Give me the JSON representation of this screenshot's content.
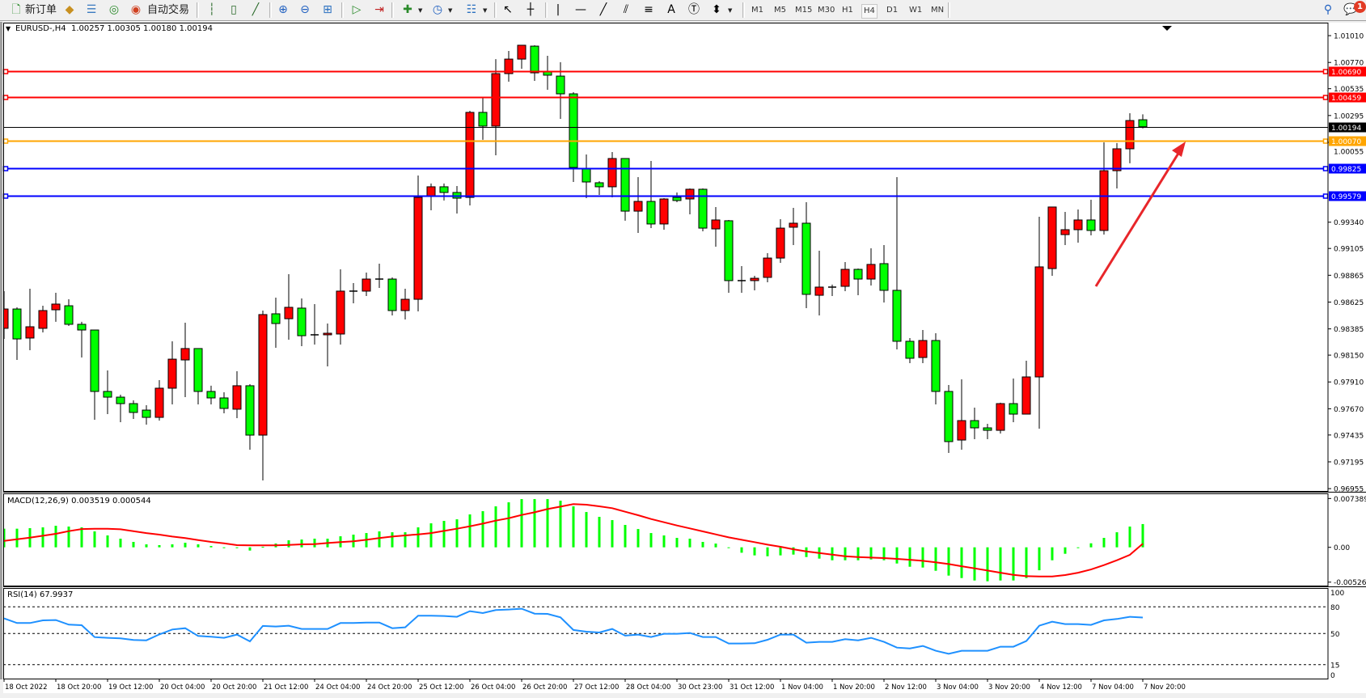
{
  "toolbar": {
    "new_order_label": "新订单",
    "auto_trading_label": "自动交易",
    "tool_icons": [
      "new-order-icon",
      "history-center-icon",
      "market-watch-icon",
      "signals-icon",
      "auto-trading-icon",
      "bar-chart-icon",
      "candlestick-icon",
      "line-chart-icon",
      "zoom-in-icon",
      "zoom-out-icon",
      "tile-windows-icon",
      "autoscroll-icon",
      "chart-shift-icon",
      "indicators-icon",
      "periods-icon",
      "templates-icon",
      "cursor-icon",
      "crosshair-icon",
      "vertical-line-icon",
      "horizontal-line-icon",
      "trendline-icon",
      "fibonacci-expansion-icon",
      "fibonacci-retracement-icon",
      "text-icon",
      "text-label-icon",
      "arrows-icon",
      "search-icon",
      "notification-icon"
    ],
    "timeframes": [
      "M1",
      "M5",
      "M15",
      "M30",
      "H1",
      "H4",
      "D1",
      "W1",
      "MN"
    ],
    "active_timeframe": "H4",
    "notification_count": "1"
  },
  "chart": {
    "symbol_period": "EURUSD-,H4",
    "ohlc_readout": "1.00257 1.00305 1.00180 1.00194",
    "macd_label": "MACD(12,26,9) 0.003519 0.000544",
    "rsi_label": "RSI(14) 67.9937"
  },
  "chart_data": [
    {
      "type": "candlestick",
      "symbol": "EURUSD-",
      "timeframe": "H4",
      "colors": {
        "bull": "#ff0000",
        "bear": "#00ff00",
        "outline": "#000000"
      },
      "ylim": [
        0.96971,
        1.01156
      ],
      "y_ticks": [
        "1.01010",
        "1.00770",
        "1.00535",
        "1.00295",
        "1.00055",
        "0.99340",
        "0.99105",
        "0.98865",
        "0.98625",
        "0.98385",
        "0.98150",
        "0.97910",
        "0.97670",
        "0.97435",
        "0.97195",
        "0.96955"
      ],
      "x_ticks": [
        "18 Oct 2022",
        "18 Oct 20:00",
        "19 Oct 12:00",
        "20 Oct 04:00",
        "20 Oct 20:00",
        "21 Oct 12:00",
        "24 Oct 04:00",
        "24 Oct 20:00",
        "25 Oct 12:00",
        "26 Oct 04:00",
        "26 Oct 20:00",
        "27 Oct 12:00",
        "28 Oct 04:00",
        "30 Oct 23:00",
        "31 Oct 12:00",
        "1 Nov 04:00",
        "1 Nov 20:00",
        "2 Nov 12:00",
        "3 Nov 04:00",
        "3 Nov 20:00",
        "4 Nov 12:00",
        "7 Nov 04:00",
        "7 Nov 20:00"
      ],
      "ohlc_columns": [
        "open",
        "high",
        "low",
        "close"
      ],
      "ohlc": [
        [
          0.9839,
          0.98723,
          0.98295,
          0.98563
        ],
        [
          0.98563,
          0.98578,
          0.98107,
          0.98295
        ],
        [
          0.98303,
          0.98744,
          0.98194,
          0.98404
        ],
        [
          0.9839,
          0.98592,
          0.98353,
          0.98549
        ],
        [
          0.98556,
          0.98708,
          0.98448,
          0.98607
        ],
        [
          0.98592,
          0.9865,
          0.98411,
          0.98426
        ],
        [
          0.98426,
          0.98448,
          0.98129,
          0.98375
        ],
        [
          0.98375,
          0.98375,
          0.97571,
          0.97825
        ],
        [
          0.97825,
          0.98013,
          0.97622,
          0.97774
        ],
        [
          0.97774,
          0.97796,
          0.9755,
          0.97716
        ],
        [
          0.97716,
          0.97745,
          0.97579,
          0.97637
        ],
        [
          0.97658,
          0.97702,
          0.97528,
          0.97593
        ],
        [
          0.97593,
          0.97926,
          0.97564,
          0.97854
        ],
        [
          0.97854,
          0.98274,
          0.97709,
          0.98114
        ],
        [
          0.98107,
          0.9844,
          0.97774,
          0.98209
        ],
        [
          0.98209,
          0.98209,
          0.97709,
          0.97825
        ],
        [
          0.97825,
          0.97876,
          0.97709,
          0.97767
        ],
        [
          0.97767,
          0.97818,
          0.97629,
          0.97673
        ],
        [
          0.97666,
          0.98006,
          0.97586,
          0.97876
        ],
        [
          0.97876,
          0.9789,
          0.97304,
          0.97434
        ],
        [
          0.97434,
          0.98549,
          0.97028,
          0.98513
        ],
        [
          0.9852,
          0.98665,
          0.98216,
          0.98433
        ],
        [
          0.98476,
          0.98875,
          0.98288,
          0.98578
        ],
        [
          0.98571,
          0.98657,
          0.9823,
          0.98324
        ],
        [
          0.98332,
          0.98607,
          0.98245,
          0.98332
        ],
        [
          0.98332,
          0.98433,
          0.98049,
          0.98346
        ],
        [
          0.98339,
          0.98918,
          0.98245,
          0.98723
        ],
        [
          0.98723,
          0.98795,
          0.98614,
          0.98723
        ],
        [
          0.98723,
          0.98889,
          0.98679,
          0.98831
        ],
        [
          0.98831,
          0.98969,
          0.98752,
          0.98831
        ],
        [
          0.98831,
          0.98846,
          0.98505,
          0.98549
        ],
        [
          0.98549,
          0.98744,
          0.98469,
          0.9865
        ],
        [
          0.9865,
          0.99758,
          0.98542,
          0.99562
        ],
        [
          0.9957,
          0.99686,
          0.99447,
          0.99657
        ],
        [
          0.99657,
          0.99686,
          0.99534,
          0.99606
        ],
        [
          0.99606,
          0.99664,
          0.99418,
          0.99555
        ],
        [
          0.99562,
          1.00337,
          0.9949,
          1.00323
        ],
        [
          1.00323,
          1.00453,
          1.00077,
          1.002
        ],
        [
          1.002,
          1.008,
          0.99939,
          1.0067
        ],
        [
          1.0067,
          1.00873,
          1.00598,
          1.008
        ],
        [
          1.008,
          1.00924,
          1.00714,
          1.00924
        ],
        [
          1.00916,
          1.00924,
          1.00605,
          1.00677
        ],
        [
          1.00685,
          1.00829,
          1.00525,
          1.00656
        ],
        [
          1.00648,
          1.00772,
          1.00265,
          1.00489
        ],
        [
          1.00489,
          1.00504,
          0.997,
          0.9983
        ],
        [
          0.99823,
          0.99946,
          0.99555,
          0.997
        ],
        [
          0.99693,
          0.99707,
          0.99584,
          0.99657
        ],
        [
          0.99657,
          0.99968,
          0.99562,
          0.9991
        ],
        [
          0.9991,
          0.9991,
          0.99353,
          0.99439
        ],
        [
          0.99439,
          0.99743,
          0.99244,
          0.99526
        ],
        [
          0.99526,
          0.99888,
          0.99287,
          0.99324
        ],
        [
          0.99324,
          0.99555,
          0.99273,
          0.99548
        ],
        [
          0.99562,
          0.99606,
          0.99519,
          0.99534
        ],
        [
          0.99548,
          0.99642,
          0.9941,
          0.99635
        ],
        [
          0.99635,
          0.99642,
          0.99258,
          0.99287
        ],
        [
          0.9928,
          0.99476,
          0.99121,
          0.9936
        ],
        [
          0.99353,
          0.9936,
          0.98708,
          0.98817
        ],
        [
          0.98817,
          0.98947,
          0.98708,
          0.98817
        ],
        [
          0.98817,
          0.9886,
          0.9873,
          0.98838
        ],
        [
          0.98846,
          0.99063,
          0.98802,
          0.99019
        ],
        [
          0.99019,
          0.99367,
          0.98976,
          0.99287
        ],
        [
          0.99295,
          0.99468,
          0.99135,
          0.99331
        ],
        [
          0.99331,
          0.99519,
          0.98571,
          0.98694
        ],
        [
          0.98686,
          0.99085,
          0.98505,
          0.98759
        ],
        [
          0.98759,
          0.98781,
          0.98679,
          0.98759
        ],
        [
          0.98766,
          0.98983,
          0.98723,
          0.98918
        ],
        [
          0.98918,
          0.98925,
          0.98686,
          0.98831
        ],
        [
          0.98831,
          0.99106,
          0.98773,
          0.98962
        ],
        [
          0.98969,
          0.99135,
          0.98621,
          0.9873
        ],
        [
          0.9873,
          0.99743,
          0.98201,
          0.98274
        ],
        [
          0.98274,
          0.98303,
          0.98078,
          0.98122
        ],
        [
          0.98129,
          0.98375,
          0.98078,
          0.98281
        ],
        [
          0.98281,
          0.98346,
          0.97709,
          0.97825
        ],
        [
          0.97825,
          0.97883,
          0.97275,
          0.97376
        ],
        [
          0.9739,
          0.97933,
          0.97304,
          0.97564
        ],
        [
          0.97564,
          0.9768,
          0.97398,
          0.97499
        ],
        [
          0.97499,
          0.97535,
          0.97398,
          0.97477
        ],
        [
          0.97477,
          0.97724,
          0.97448,
          0.97716
        ],
        [
          0.97716,
          0.97941,
          0.9755,
          0.97622
        ],
        [
          0.97622,
          0.981,
          0.97622,
          0.97955
        ],
        [
          0.97955,
          0.99389,
          0.97492,
          0.9894
        ],
        [
          0.98925,
          0.99476,
          0.9886,
          0.99476
        ],
        [
          0.99229,
          0.99432,
          0.99135,
          0.99273
        ],
        [
          0.99273,
          0.99454,
          0.99157,
          0.9936
        ],
        [
          0.9936,
          0.99541,
          0.99222,
          0.99266
        ],
        [
          0.99266,
          1.00055,
          0.99229,
          0.99801
        ],
        [
          0.99801,
          1.00048,
          0.99642,
          0.99997
        ],
        [
          0.99997,
          1.00315,
          0.99867,
          1.0025
        ],
        [
          1.00257,
          1.00305,
          1.0018,
          1.00194
        ]
      ],
      "horizontal_lines": [
        {
          "price": "1.00690",
          "color": "#ff0000"
        },
        {
          "price": "1.00459",
          "color": "#ff0000"
        },
        {
          "price": "1.00194",
          "color": "#000000",
          "current_price": true
        },
        {
          "price": "1.00070",
          "color": "#ffa500"
        },
        {
          "price": "0.99825",
          "color": "#0000ff"
        },
        {
          "price": "0.99579",
          "color": "#0000ff"
        }
      ],
      "annotation_arrow": {
        "color": "#e8262a",
        "direction": "up-right"
      }
    },
    {
      "type": "bar",
      "indicator": "MACD(12,26,9)",
      "ylim": [
        -0.005269,
        0.007389
      ],
      "y_ticks": [
        "0.007389",
        "0.00",
        "-0.005269"
      ],
      "histogram_color": "#00ff00",
      "signal_color": "#ff0000",
      "histogram": [
        0.00282,
        0.00282,
        0.0029,
        0.00302,
        0.00326,
        0.00314,
        0.00302,
        0.00241,
        0.0018,
        0.00131,
        0.00082,
        0.00045,
        0.00033,
        0.00045,
        0.00069,
        0.00045,
        0.0002,
        -8e-05,
        -8e-05,
        -0.00049,
        8e-05,
        0.00057,
        0.00106,
        0.00118,
        0.00131,
        0.00131,
        0.00167,
        0.00192,
        0.00216,
        0.00241,
        0.00228,
        0.00228,
        0.00302,
        0.00363,
        0.004,
        0.00424,
        0.00498,
        0.00547,
        0.0062,
        0.00681,
        0.0073,
        0.0073,
        0.0073,
        0.00706,
        0.0062,
        0.00534,
        0.00461,
        0.00412,
        0.00339,
        0.00277,
        0.00216,
        0.0018,
        0.00143,
        0.00131,
        0.00082,
        0.00057,
        -4e-05,
        -0.00082,
        -0.00122,
        -0.00135,
        -0.00122,
        -0.0011,
        -0.00147,
        -0.00171,
        -0.00196,
        -0.00196,
        -0.00196,
        -0.00184,
        -0.00196,
        -0.00245,
        -0.00294,
        -0.00306,
        -0.00355,
        -0.00428,
        -0.00465,
        -0.00502,
        -0.00514,
        -0.00502,
        -0.00502,
        -0.00465,
        -0.00347,
        -0.00196,
        -0.00098,
        -0.00012,
        0.00061,
        0.00143,
        0.00228,
        0.00314,
        0.003519
      ],
      "signal": [
        0.00098,
        0.00122,
        0.00147,
        0.00175,
        0.00204,
        0.00245,
        0.00277,
        0.00282,
        0.00282,
        0.00273,
        0.00245,
        0.00216,
        0.00192,
        0.00163,
        0.00139,
        0.0011,
        0.00082,
        0.00061,
        0.00033,
        0.00029,
        0.00029,
        0.00029,
        0.00037,
        0.00045,
        0.00049,
        0.00065,
        0.00078,
        0.0009,
        0.00114,
        0.00139,
        0.00163,
        0.0018,
        0.00196,
        0.00216,
        0.00249,
        0.00282,
        0.00318,
        0.00359,
        0.00404,
        0.00441,
        0.0049,
        0.0053,
        0.00579,
        0.00616,
        0.00653,
        0.00645,
        0.0062,
        0.00592,
        0.00539,
        0.00486,
        0.00428,
        0.00379,
        0.0033,
        0.00286,
        0.00241,
        0.00196,
        0.00151,
        0.00114,
        0.00078,
        0.00041,
        8e-05,
        -0.00029,
        -0.00061,
        -0.00086,
        -0.0011,
        -0.00135,
        -0.00147,
        -0.00155,
        -0.00163,
        -0.00175,
        -0.00188,
        -0.00204,
        -0.00228,
        -0.00253,
        -0.00286,
        -0.00318,
        -0.00351,
        -0.00384,
        -0.00416,
        -0.00437,
        -0.00441,
        -0.00441,
        -0.0042,
        -0.00384,
        -0.00335,
        -0.00269,
        -0.00196,
        -0.00114,
        0.000544
      ]
    },
    {
      "type": "line",
      "indicator": "RSI(14)",
      "ylim": [
        0,
        100
      ],
      "y_ticks": [
        "100",
        "80",
        "50",
        "15",
        "0"
      ],
      "levels": [
        80,
        50,
        15
      ],
      "color": "#1e90ff",
      "values": [
        67,
        61.8,
        61.8,
        64.8,
        65.2,
        60,
        59.4,
        46,
        45.2,
        44.5,
        42.7,
        42.4,
        49,
        54.5,
        56,
        47.3,
        46.4,
        45.2,
        48.8,
        41.2,
        58.5,
        57.9,
        58.8,
        55.2,
        55.2,
        55.2,
        61.8,
        61.8,
        62.4,
        62.4,
        56,
        57,
        70,
        70,
        69.7,
        68.8,
        75.2,
        73,
        76.4,
        77,
        77.9,
        72.4,
        72.1,
        68.2,
        54,
        52.1,
        51.2,
        55.2,
        47.6,
        48.8,
        46.1,
        49.7,
        49.7,
        50.6,
        46.1,
        46.1,
        38.8,
        38.8,
        39.1,
        43,
        48.8,
        48.8,
        39.7,
        40.6,
        40.6,
        43.6,
        42.4,
        45.2,
        40.6,
        34.2,
        33.3,
        36.1,
        30.6,
        27.3,
        30.6,
        30.6,
        30.6,
        35.2,
        35.2,
        41.5,
        58.8,
        63.3,
        60.6,
        60.6,
        59.7,
        64.8,
        66.4,
        68.8,
        67.9937
      ]
    }
  ]
}
